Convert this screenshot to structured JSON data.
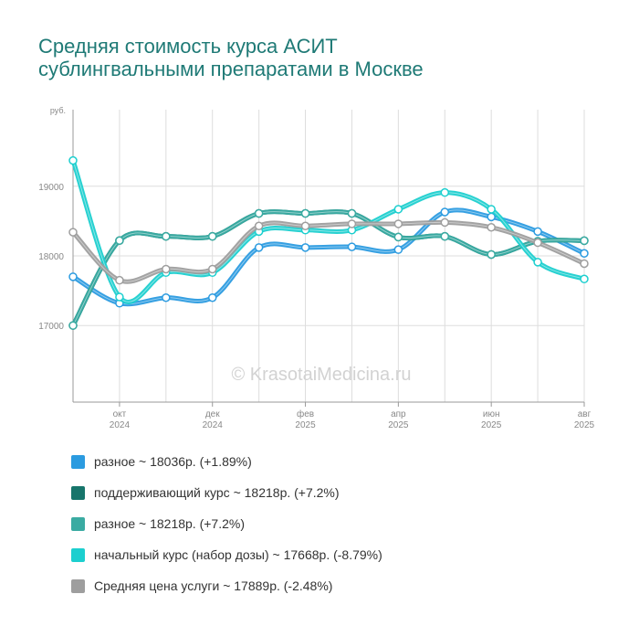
{
  "title_lines": [
    "Средняя стоимость курса АСИТ",
    "сублингвальными препаратами в Москве"
  ],
  "watermark": "© KrasotaiMedicina.ru",
  "chart_data": {
    "type": "line",
    "title": "Средняя стоимость курса АСИТ сублингвальными препаратами в Москве",
    "ylabel": "руб.",
    "ylim": [
      15900,
      20100
    ],
    "yticks": [
      17000,
      18000,
      19000
    ],
    "grid": true,
    "legend_position": "bottom",
    "x": [
      "2024-09",
      "2024-10",
      "2024-11",
      "2024-12",
      "2025-01",
      "2025-02",
      "2025-03",
      "2025-04",
      "2025-05",
      "2025-06",
      "2025-07",
      "2025-08"
    ],
    "xtick_labels": [
      {
        "month": "окт",
        "year": "2024",
        "index": 1
      },
      {
        "month": "дек",
        "year": "2024",
        "index": 3
      },
      {
        "month": "фев",
        "year": "2025",
        "index": 5
      },
      {
        "month": "апр",
        "year": "2025",
        "index": 7
      },
      {
        "month": "июн",
        "year": "2025",
        "index": 9
      },
      {
        "month": "авг",
        "year": "2025",
        "index": 11
      }
    ],
    "series": [
      {
        "legend": "разное ~ 18036р. (+1.89%)",
        "color": "#2b9be0",
        "values": [
          17700,
          17320,
          17400,
          17400,
          18120,
          18120,
          18130,
          18090,
          18630,
          18560,
          18350,
          18036
        ]
      },
      {
        "legend": "поддерживающий курс ~ 18218р. (+7.2%)",
        "color": "#17756b",
        "values": [
          17000,
          18220,
          18280,
          18280,
          18610,
          18610,
          18610,
          18270,
          18280,
          18020,
          18210,
          18218
        ]
      },
      {
        "legend": "разное ~ 18218р. (+7.2%)",
        "color": "#3aaba2",
        "values": [
          17000,
          18220,
          18280,
          18280,
          18610,
          18610,
          18610,
          18270,
          18280,
          18020,
          18210,
          18218
        ]
      },
      {
        "legend": "начальный курс (набор дозы) ~ 17668р. (-8.79%)",
        "color": "#1ccfcf",
        "values": [
          19370,
          17410,
          17760,
          17760,
          18350,
          18370,
          18370,
          18670,
          18910,
          18670,
          17910,
          17668
        ]
      },
      {
        "legend": "Средняя цена услуги ~ 17889р. (-2.48%)",
        "color": "#9e9e9e",
        "values": [
          18340,
          17650,
          17810,
          17810,
          18430,
          18430,
          18460,
          18460,
          18480,
          18410,
          18190,
          17889
        ]
      }
    ]
  }
}
